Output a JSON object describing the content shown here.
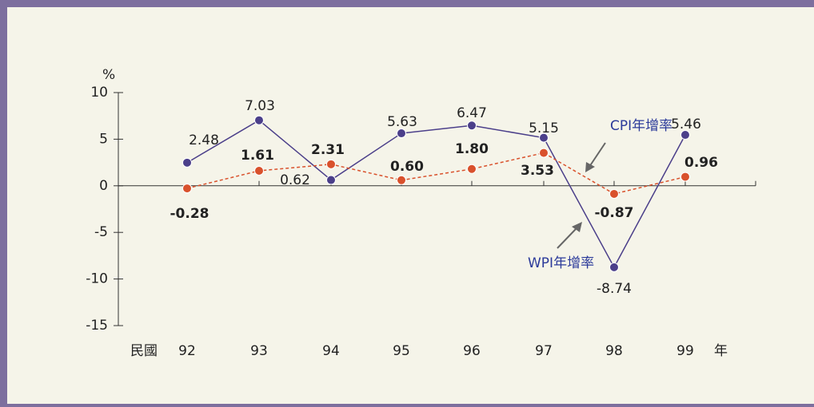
{
  "chart_data": {
    "type": "line",
    "y_unit": "%",
    "x_prefix": "民國",
    "x_suffix": "年",
    "categories": [
      "92",
      "93",
      "94",
      "95",
      "96",
      "97",
      "98",
      "99"
    ],
    "ylim": [
      -15,
      10
    ],
    "yticks": [
      10,
      5,
      0,
      -5,
      -10,
      -15
    ],
    "series": [
      {
        "name": "WPI年增率",
        "color": "#4b3f8a",
        "values": [
          2.48,
          7.03,
          0.62,
          5.63,
          6.47,
          5.15,
          -8.74,
          5.46
        ],
        "value_labels": [
          "2.48",
          "7.03",
          "0.62",
          "5.63",
          "6.47",
          "5.15",
          "-8.74",
          "5.46"
        ]
      },
      {
        "name": "CPI年增率",
        "color": "#d9512c",
        "dashed": true,
        "values": [
          -0.28,
          1.61,
          2.31,
          0.6,
          1.8,
          3.53,
          -0.87,
          0.96
        ],
        "value_labels": [
          "-0.28",
          "1.61",
          "2.31",
          "0.60",
          "1.80",
          "3.53",
          "-0.87",
          "0.96"
        ]
      }
    ]
  }
}
